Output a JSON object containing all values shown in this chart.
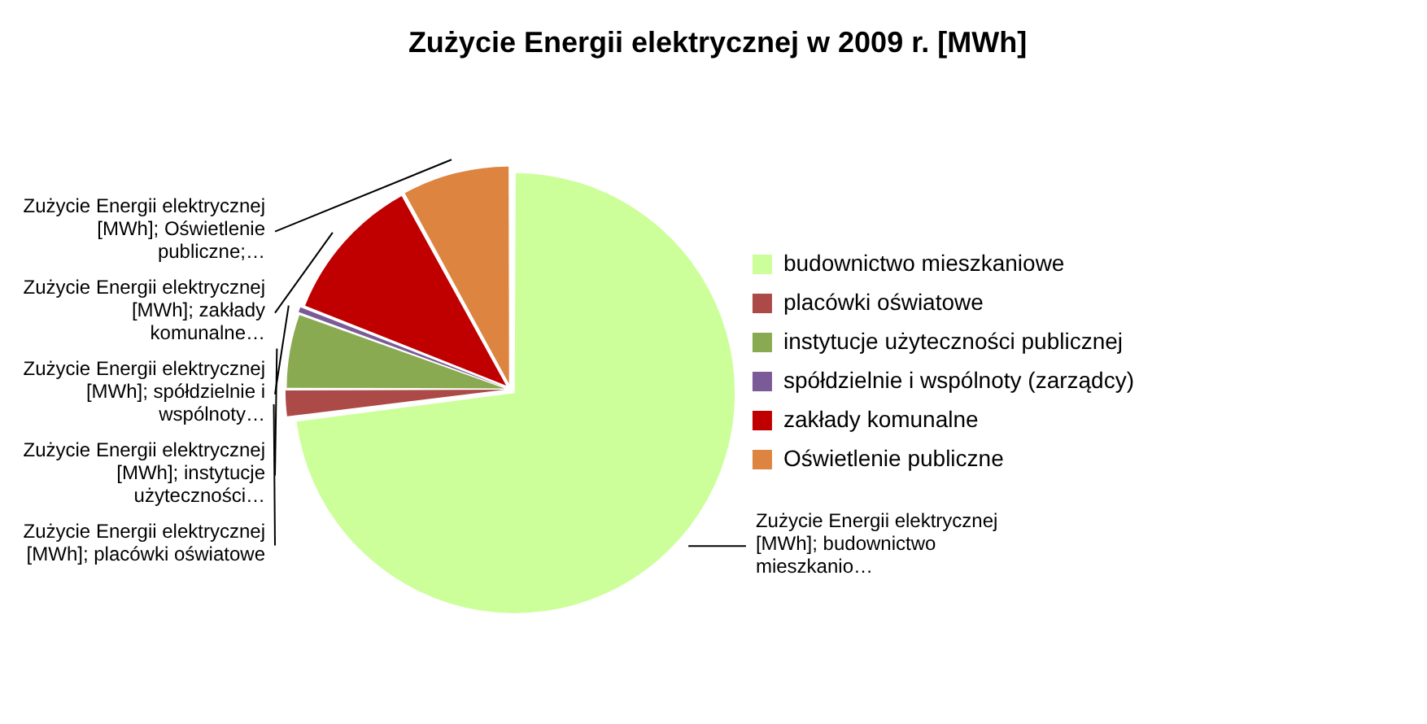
{
  "chart_data": {
    "type": "pie",
    "title": "Zużycie Energii elektrycznej w 2009 r. [MWh]",
    "categories": [
      "budownictwo mieszkaniowe",
      "placówki oświatowe",
      "instytucje użyteczności publicznej",
      "spółdzielnie i wspólnoty (zarządcy)",
      "zakłady komunalne",
      "Oświetlenie publiczne"
    ],
    "values": [
      73,
      2,
      5.5,
      0.5,
      11,
      8
    ],
    "colors": [
      "#ccff99",
      "#ac4a47",
      "#8aaa52",
      "#7a5b98",
      "#c00000",
      "#dd8440"
    ],
    "value_labels": [
      "Zużycie Energii elektrycznej [MWh]; budownictwo mieszkanio…",
      "Zużycie Energii elektrycznej [MWh]; placówki oświatowe",
      "Zużycie Energii elektrycznej [MWh]; instytucje użyteczności…",
      "Zużycie Energii elektrycznej [MWh]; spółdzielnie i wspólnoty…",
      "Zużycie Energii elektrycznej [MWh]; zakłady komunalne…",
      "Zużycie Energii elektrycznej [MWh]; Oświetlenie publiczne;…"
    ],
    "legend": "right"
  }
}
